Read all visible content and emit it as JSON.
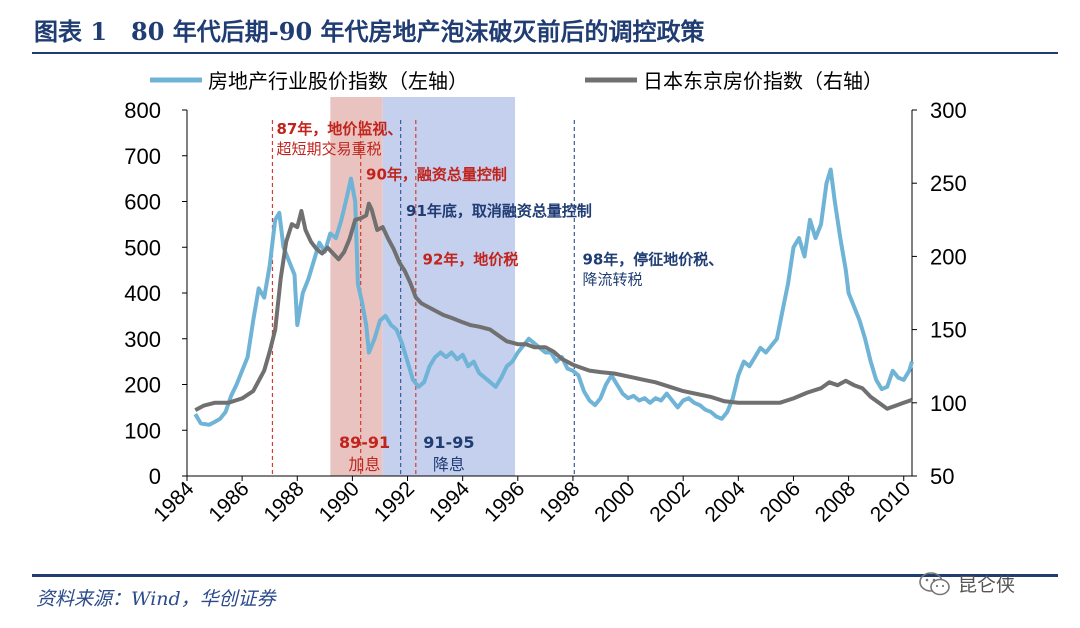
{
  "title": "图表 1　80 年代后期-90 年代房地产泡沫破灭前后的调控政策",
  "source": "资料来源：Wind，华创证券",
  "watermark": "昆仑侠",
  "chart_data": {
    "type": "line",
    "xlim": [
      1984,
      2010.3
    ],
    "x_ticks": [
      "1984",
      "1986",
      "1988",
      "1990",
      "1992",
      "1994",
      "1996",
      "1998",
      "2000",
      "2002",
      "2004",
      "2006",
      "2008",
      "2010"
    ],
    "y_left": {
      "range": [
        0,
        800
      ],
      "ticks": [
        "0",
        "100",
        "200",
        "300",
        "400",
        "500",
        "600",
        "700",
        "800"
      ]
    },
    "y_right": {
      "range": [
        50,
        300
      ],
      "ticks": [
        "50",
        "100",
        "150",
        "200",
        "250",
        "300"
      ]
    },
    "legend_placement": "top",
    "series": [
      {
        "name": "房地产行业股价指数（左轴）",
        "axis": "left",
        "color": "#6fb3d6",
        "points": [
          [
            1984.3,
            135
          ],
          [
            1984.5,
            115
          ],
          [
            1984.8,
            112
          ],
          [
            1985.0,
            118
          ],
          [
            1985.2,
            125
          ],
          [
            1985.4,
            140
          ],
          [
            1985.6,
            175
          ],
          [
            1985.8,
            200
          ],
          [
            1986.0,
            230
          ],
          [
            1986.2,
            260
          ],
          [
            1986.4,
            340
          ],
          [
            1986.6,
            410
          ],
          [
            1986.8,
            390
          ],
          [
            1987.0,
            460
          ],
          [
            1987.2,
            560
          ],
          [
            1987.35,
            575
          ],
          [
            1987.5,
            500
          ],
          [
            1987.7,
            470
          ],
          [
            1987.9,
            440
          ],
          [
            1988.0,
            330
          ],
          [
            1988.2,
            400
          ],
          [
            1988.4,
            430
          ],
          [
            1988.6,
            470
          ],
          [
            1988.8,
            510
          ],
          [
            1989.0,
            490
          ],
          [
            1989.2,
            530
          ],
          [
            1989.4,
            520
          ],
          [
            1989.6,
            560
          ],
          [
            1989.8,
            610
          ],
          [
            1989.95,
            650
          ],
          [
            1990.1,
            600
          ],
          [
            1990.2,
            420
          ],
          [
            1990.35,
            380
          ],
          [
            1990.5,
            330
          ],
          [
            1990.6,
            270
          ],
          [
            1990.8,
            300
          ],
          [
            1991.0,
            340
          ],
          [
            1991.2,
            350
          ],
          [
            1991.4,
            330
          ],
          [
            1991.6,
            320
          ],
          [
            1991.8,
            290
          ],
          [
            1992.0,
            250
          ],
          [
            1992.2,
            210
          ],
          [
            1992.4,
            195
          ],
          [
            1992.6,
            205
          ],
          [
            1992.8,
            240
          ],
          [
            1993.0,
            260
          ],
          [
            1993.2,
            270
          ],
          [
            1993.4,
            260
          ],
          [
            1993.6,
            270
          ],
          [
            1993.8,
            255
          ],
          [
            1994.0,
            265
          ],
          [
            1994.2,
            240
          ],
          [
            1994.4,
            250
          ],
          [
            1994.6,
            225
          ],
          [
            1994.8,
            215
          ],
          [
            1995.0,
            205
          ],
          [
            1995.2,
            195
          ],
          [
            1995.4,
            215
          ],
          [
            1995.6,
            240
          ],
          [
            1995.8,
            250
          ],
          [
            1996.0,
            270
          ],
          [
            1996.2,
            285
          ],
          [
            1996.4,
            300
          ],
          [
            1996.6,
            290
          ],
          [
            1996.8,
            280
          ],
          [
            1997.0,
            270
          ],
          [
            1997.2,
            270
          ],
          [
            1997.4,
            250
          ],
          [
            1997.6,
            260
          ],
          [
            1997.8,
            235
          ],
          [
            1998.0,
            230
          ],
          [
            1998.2,
            220
          ],
          [
            1998.4,
            185
          ],
          [
            1998.6,
            165
          ],
          [
            1998.8,
            155
          ],
          [
            1999.0,
            170
          ],
          [
            1999.2,
            200
          ],
          [
            1999.4,
            220
          ],
          [
            1999.6,
            200
          ],
          [
            1999.8,
            180
          ],
          [
            2000.0,
            170
          ],
          [
            2000.2,
            175
          ],
          [
            2000.4,
            165
          ],
          [
            2000.6,
            170
          ],
          [
            2000.8,
            160
          ],
          [
            2001.0,
            170
          ],
          [
            2001.2,
            165
          ],
          [
            2001.4,
            180
          ],
          [
            2001.6,
            165
          ],
          [
            2001.8,
            150
          ],
          [
            2002.0,
            165
          ],
          [
            2002.2,
            170
          ],
          [
            2002.4,
            160
          ],
          [
            2002.6,
            155
          ],
          [
            2002.8,
            145
          ],
          [
            2003.0,
            140
          ],
          [
            2003.2,
            130
          ],
          [
            2003.4,
            125
          ],
          [
            2003.6,
            140
          ],
          [
            2003.8,
            170
          ],
          [
            2004.0,
            220
          ],
          [
            2004.2,
            250
          ],
          [
            2004.4,
            240
          ],
          [
            2004.6,
            260
          ],
          [
            2004.8,
            280
          ],
          [
            2005.0,
            270
          ],
          [
            2005.2,
            285
          ],
          [
            2005.4,
            300
          ],
          [
            2005.6,
            360
          ],
          [
            2005.8,
            420
          ],
          [
            2006.0,
            500
          ],
          [
            2006.2,
            520
          ],
          [
            2006.4,
            480
          ],
          [
            2006.6,
            560
          ],
          [
            2006.8,
            520
          ],
          [
            2007.0,
            550
          ],
          [
            2007.2,
            640
          ],
          [
            2007.35,
            670
          ],
          [
            2007.5,
            600
          ],
          [
            2007.7,
            520
          ],
          [
            2007.9,
            450
          ],
          [
            2008.0,
            400
          ],
          [
            2008.2,
            370
          ],
          [
            2008.4,
            340
          ],
          [
            2008.6,
            300
          ],
          [
            2008.8,
            250
          ],
          [
            2009.0,
            210
          ],
          [
            2009.2,
            190
          ],
          [
            2009.4,
            195
          ],
          [
            2009.6,
            230
          ],
          [
            2009.8,
            215
          ],
          [
            2010.0,
            210
          ],
          [
            2010.2,
            230
          ],
          [
            2010.3,
            250
          ]
        ]
      },
      {
        "name": "日本东京房价指数（右轴）",
        "axis": "right",
        "color": "#707070",
        "points": [
          [
            1984.3,
            95
          ],
          [
            1984.6,
            98
          ],
          [
            1985.0,
            100
          ],
          [
            1985.5,
            100
          ],
          [
            1986.0,
            103
          ],
          [
            1986.4,
            108
          ],
          [
            1986.8,
            122
          ],
          [
            1987.0,
            135
          ],
          [
            1987.2,
            150
          ],
          [
            1987.4,
            185
          ],
          [
            1987.6,
            210
          ],
          [
            1987.8,
            222
          ],
          [
            1988.0,
            220
          ],
          [
            1988.15,
            231
          ],
          [
            1988.3,
            218
          ],
          [
            1988.5,
            210
          ],
          [
            1988.7,
            205
          ],
          [
            1988.9,
            202
          ],
          [
            1989.1,
            206
          ],
          [
            1989.3,
            202
          ],
          [
            1989.5,
            198
          ],
          [
            1989.7,
            203
          ],
          [
            1989.9,
            212
          ],
          [
            1990.1,
            225
          ],
          [
            1990.3,
            226
          ],
          [
            1990.5,
            228
          ],
          [
            1990.6,
            236
          ],
          [
            1990.7,
            232
          ],
          [
            1990.9,
            218
          ],
          [
            1991.1,
            220
          ],
          [
            1991.3,
            212
          ],
          [
            1991.5,
            205
          ],
          [
            1991.7,
            196
          ],
          [
            1991.9,
            190
          ],
          [
            1992.1,
            182
          ],
          [
            1992.3,
            172
          ],
          [
            1992.5,
            168
          ],
          [
            1992.7,
            166
          ],
          [
            1993.0,
            163
          ],
          [
            1993.3,
            160
          ],
          [
            1993.6,
            158
          ],
          [
            1994.0,
            155
          ],
          [
            1994.3,
            153
          ],
          [
            1994.6,
            152
          ],
          [
            1995.0,
            150
          ],
          [
            1995.3,
            146
          ],
          [
            1995.6,
            142
          ],
          [
            1996.0,
            140
          ],
          [
            1996.3,
            140
          ],
          [
            1996.6,
            138
          ],
          [
            1997.0,
            138
          ],
          [
            1997.3,
            135
          ],
          [
            1997.6,
            130
          ],
          [
            1998.0,
            126
          ],
          [
            1998.3,
            124
          ],
          [
            1998.6,
            122
          ],
          [
            1999.0,
            121
          ],
          [
            1999.5,
            120
          ],
          [
            2000.0,
            118
          ],
          [
            2000.5,
            116
          ],
          [
            2001.0,
            114
          ],
          [
            2001.5,
            111
          ],
          [
            2002.0,
            108
          ],
          [
            2002.5,
            106
          ],
          [
            2003.0,
            104
          ],
          [
            2003.5,
            101
          ],
          [
            2004.0,
            100
          ],
          [
            2004.5,
            100
          ],
          [
            2005.0,
            100
          ],
          [
            2005.5,
            100
          ],
          [
            2006.0,
            103
          ],
          [
            2006.5,
            107
          ],
          [
            2007.0,
            110
          ],
          [
            2007.3,
            114
          ],
          [
            2007.6,
            112
          ],
          [
            2007.9,
            115
          ],
          [
            2008.2,
            112
          ],
          [
            2008.5,
            110
          ],
          [
            2008.8,
            104
          ],
          [
            2009.1,
            100
          ],
          [
            2009.4,
            96
          ],
          [
            2009.7,
            98
          ],
          [
            2010.0,
            100
          ],
          [
            2010.3,
            102
          ]
        ]
      }
    ],
    "shaded_regions": [
      {
        "x0": 1989.2,
        "x1": 1991.1,
        "color": "#e9c3c0",
        "label": "89-91\n加息",
        "label_color": "#c0241d"
      },
      {
        "x0": 1991.1,
        "x1": 1995.9,
        "color": "#c5d0ee",
        "label": "91-95\n降息",
        "label_color": "#1f3c73"
      }
    ],
    "vlines": [
      {
        "x": 1987.1,
        "color": "#d63c2f"
      },
      {
        "x": 1990.3,
        "color": "#d63c2f"
      },
      {
        "x": 1991.75,
        "color": "#3d5a99"
      },
      {
        "x": 1992.3,
        "color": "#d63c2f"
      },
      {
        "x": 1998.05,
        "color": "#3d5a99"
      }
    ],
    "annotations": [
      {
        "lines": [
          "87年，地价监视、",
          "超短期交易重税"
        ],
        "color": "#c0241d",
        "x": 1987.1,
        "y": 748
      },
      {
        "lines": [
          "90年，融资总量控制"
        ],
        "color": "#c0241d",
        "x": 1990.35,
        "y": 648
      },
      {
        "lines": [
          "91年底，取消融资总量控制"
        ],
        "color": "#1f3c73",
        "x": 1991.8,
        "y": 568
      },
      {
        "lines": [
          "92年，地价税"
        ],
        "color": "#c0241d",
        "x": 1992.4,
        "y": 462
      },
      {
        "lines": [
          "98年，停征地价税、",
          "降流转税"
        ],
        "color": "#1f3c73",
        "x": 1998.2,
        "y": 462
      }
    ]
  }
}
